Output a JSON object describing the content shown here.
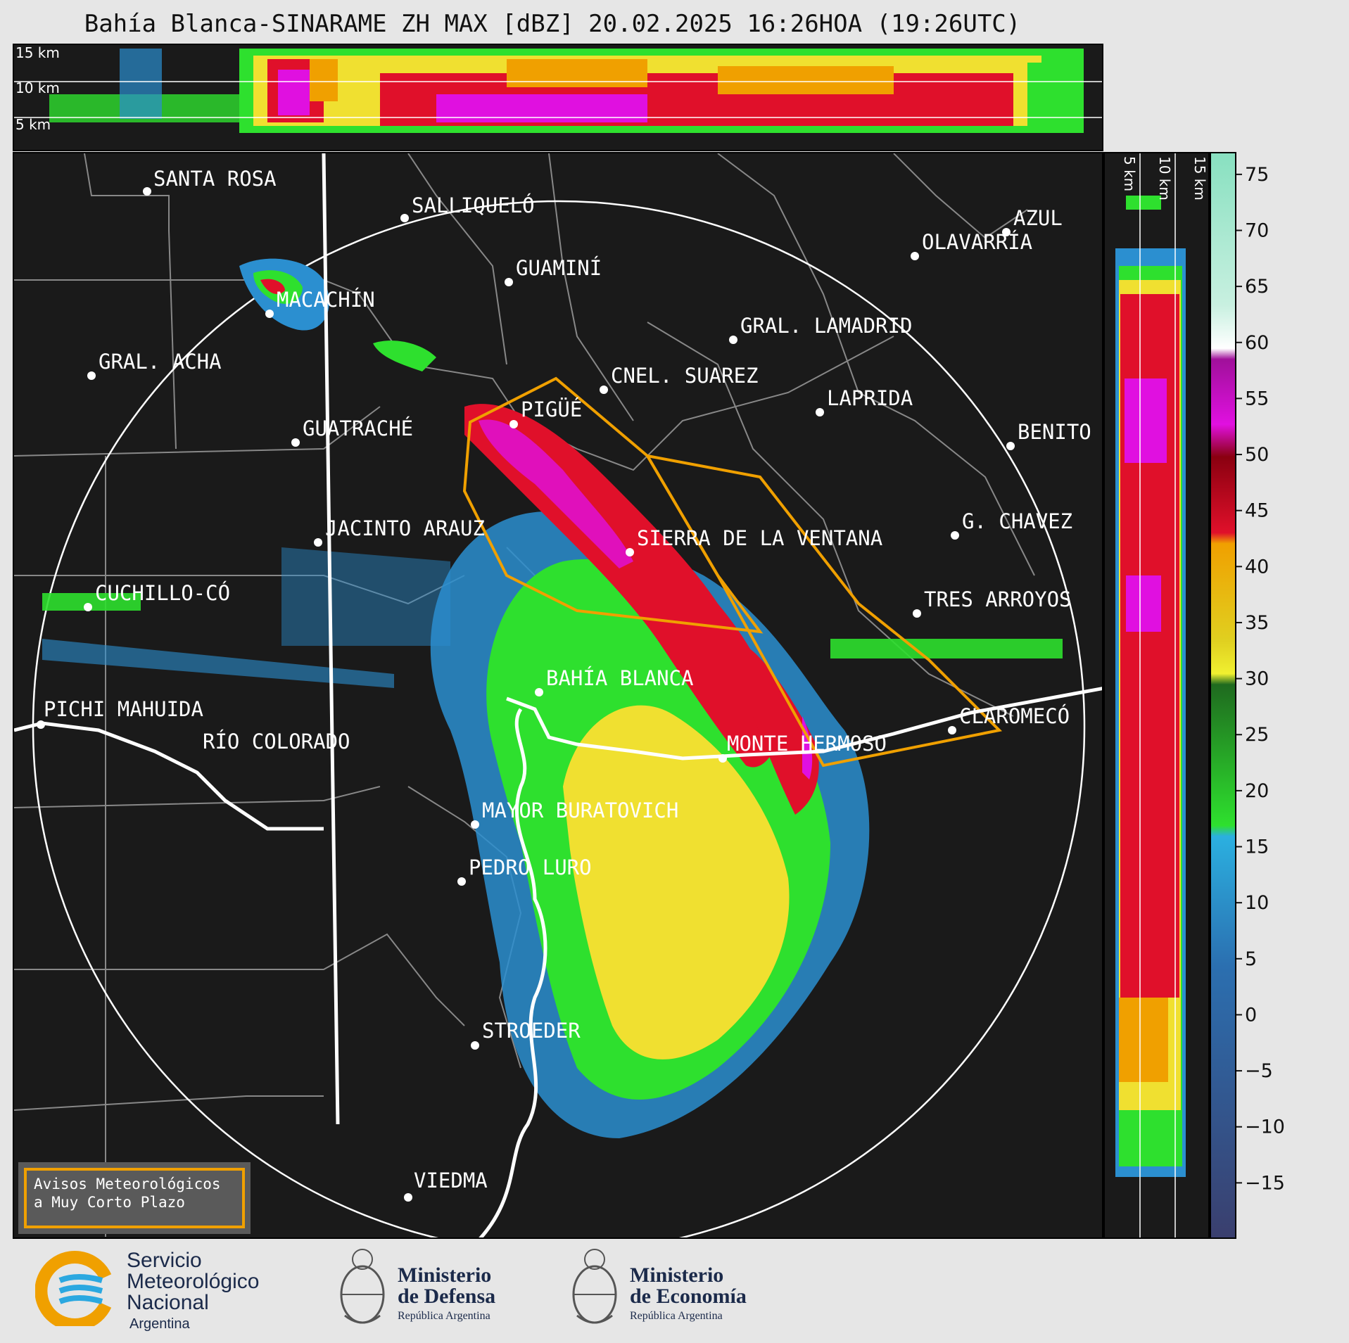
{
  "title": "Bahía Blanca-SINARAME ZH MAX [dBZ] 20.02.2025 16:26HOA (19:26UTC)",
  "top_panel": {
    "alt_labels": [
      "15 km",
      "10 km",
      "5 km"
    ]
  },
  "side_panel": {
    "alt_labels": [
      "5 km",
      "10 km",
      "15 km"
    ]
  },
  "colorbar": {
    "ticks": [
      "75",
      "70",
      "65",
      "60",
      "55",
      "50",
      "45",
      "40",
      "35",
      "30",
      "25",
      "20",
      "15",
      "10",
      "5",
      "0",
      "−5",
      "−10",
      "−15"
    ],
    "range": [
      -20,
      77
    ],
    "colors": {
      "low": "#3a3f6e",
      "blue": "#2b8fd0",
      "green": "#2ee02e",
      "yellow": "#f0e030",
      "orange": "#f0a000",
      "red": "#e0102a",
      "magenta": "#e010e0",
      "white": "#ffffff",
      "teal": "#88e0c0"
    }
  },
  "map": {
    "cities": [
      {
        "name": "SANTA ROSA"
      },
      {
        "name": "SALLIQUELÓ"
      },
      {
        "name": "AZUL"
      },
      {
        "name": "OLAVARRÍA"
      },
      {
        "name": "GUAMINÍ"
      },
      {
        "name": "MACACHÍN"
      },
      {
        "name": "GRAL. LAMADRID"
      },
      {
        "name": "GRAL. ACHA"
      },
      {
        "name": "CNEL. SUAREZ"
      },
      {
        "name": "LAPRIDA"
      },
      {
        "name": "PIGÜÉ"
      },
      {
        "name": "GUATRACHÉ"
      },
      {
        "name": "BENITO"
      },
      {
        "name": "G. CHAVEZ"
      },
      {
        "name": "JACINTO ARAUZ"
      },
      {
        "name": "SIERRA DE LA VENTANA"
      },
      {
        "name": "CUCHILLO-CÓ"
      },
      {
        "name": "TRES ARROYOS"
      },
      {
        "name": "BAHÍA BLANCA"
      },
      {
        "name": "PICHI MAHUIDA"
      },
      {
        "name": "CLAROMECÓ"
      },
      {
        "name": "RÍO COLORADO"
      },
      {
        "name": "MONTE HERMOSO"
      },
      {
        "name": "MAYOR BURATOVICH"
      },
      {
        "name": "PEDRO LURO"
      },
      {
        "name": "STROEDER"
      },
      {
        "name": "VIEDMA"
      }
    ]
  },
  "legend": {
    "line1": "Avisos Meteorológicos",
    "line2": "a Muy Corto Plazo",
    "border_color": "#f0a000"
  },
  "footer": {
    "smn": {
      "line1": "Servicio",
      "line2": "Meteorológico",
      "line3": "Nacional",
      "country": "Argentina"
    },
    "ministry_defense": {
      "title1": "Ministerio",
      "title2": "de Defensa",
      "sub": "República Argentina"
    },
    "ministry_economy": {
      "title1": "Ministerio",
      "title2": "de Economía",
      "sub": "República Argentina"
    }
  }
}
